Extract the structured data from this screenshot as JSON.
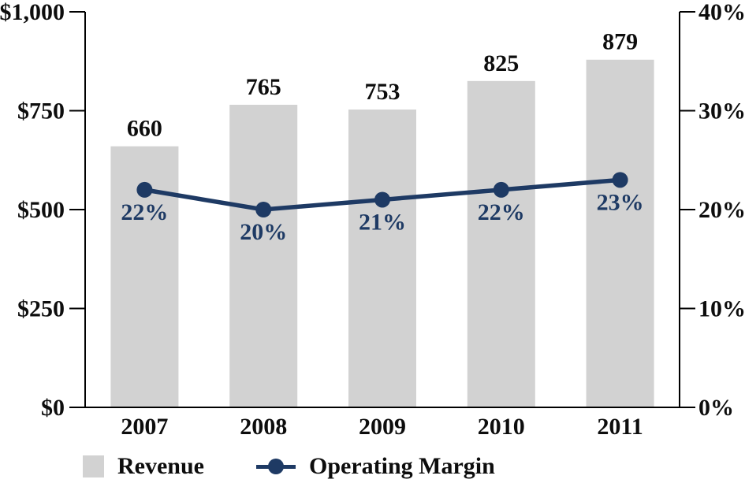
{
  "chart_data": {
    "type": "combo-bar-line",
    "title": "",
    "categories": [
      "2007",
      "2008",
      "2009",
      "2010",
      "2011"
    ],
    "series": [
      {
        "name": "Revenue",
        "type": "bar",
        "axis": "left",
        "values": [
          660,
          765,
          753,
          825,
          879
        ],
        "value_labels": [
          "660",
          "765",
          "753",
          "825",
          "879"
        ]
      },
      {
        "name": "Operating Margin",
        "type": "line",
        "axis": "right",
        "values": [
          22,
          20,
          21,
          22,
          23
        ],
        "value_labels": [
          "22%",
          "20%",
          "21%",
          "22%",
          "23%"
        ]
      }
    ],
    "left_axis": {
      "min": 0,
      "max": 1000,
      "tick_values": [
        0,
        250,
        500,
        750,
        1000
      ],
      "tick_labels": [
        "$0",
        "$250",
        "$500",
        "$750",
        "$1,000"
      ]
    },
    "right_axis": {
      "min": 0,
      "max": 40,
      "tick_values": [
        0,
        10,
        20,
        30,
        40
      ],
      "tick_labels": [
        "0%",
        "10%",
        "20%",
        "30%",
        "40%"
      ]
    },
    "legend": [
      {
        "label": "Revenue"
      },
      {
        "label": "Operating Margin"
      }
    ],
    "legend_position": "bottom",
    "grid": false,
    "colors": {
      "bar": "#d2d2d2",
      "line": "#1e3a64",
      "axis": "#000000",
      "text": "#0d0d0d"
    }
  }
}
